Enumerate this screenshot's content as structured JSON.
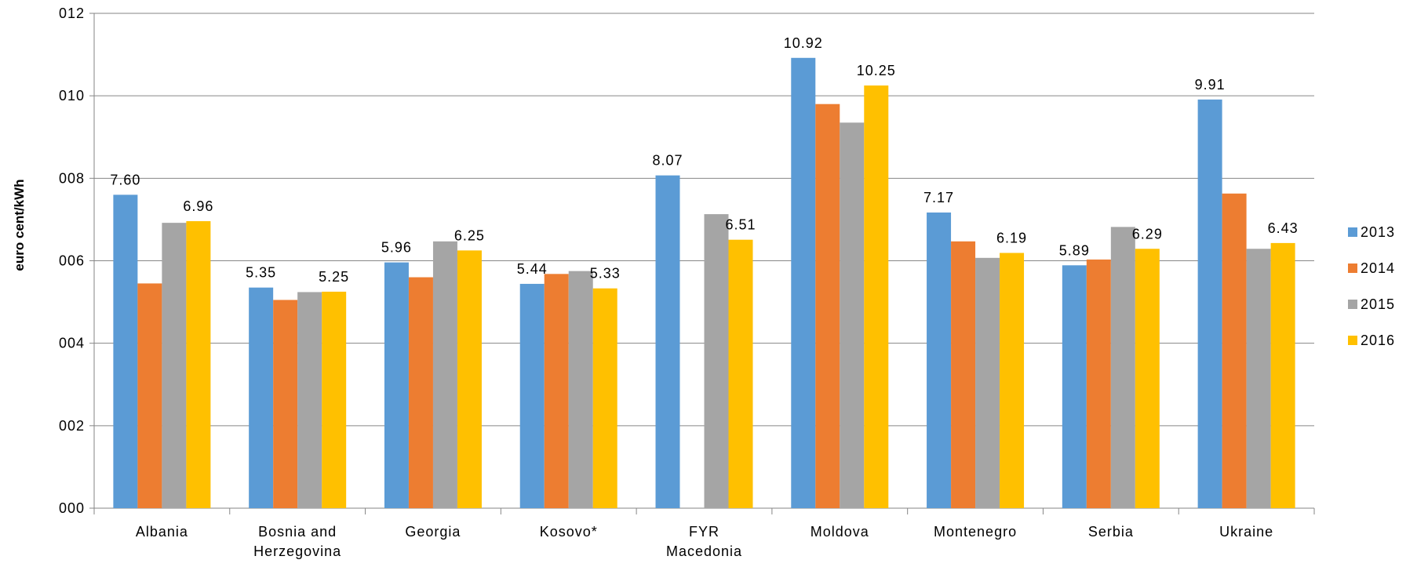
{
  "chart_data": {
    "type": "bar",
    "title": "",
    "xlabel": "",
    "ylabel": "euro cent/kWh",
    "ylim": [
      0,
      12
    ],
    "yticks": [
      0,
      2,
      4,
      6,
      8,
      10,
      12
    ],
    "ytick_labels": [
      "000",
      "002",
      "004",
      "006",
      "008",
      "010",
      "012"
    ],
    "grid": true,
    "legend_position": "right",
    "categories": [
      "Albania",
      "Bosnia and Herzegovina",
      "Georgia",
      "Kosovo*",
      "FYR Macedonia",
      "Moldova",
      "Montenegro",
      "Serbia",
      "Ukraine"
    ],
    "category_lines": [
      [
        "Albania"
      ],
      [
        "Bosnia and",
        "Herzegovina"
      ],
      [
        "Georgia"
      ],
      [
        "Kosovo*"
      ],
      [
        "FYR",
        "Macedonia"
      ],
      [
        "Moldova"
      ],
      [
        "Montenegro"
      ],
      [
        "Serbia"
      ],
      [
        "Ukraine"
      ]
    ],
    "series": [
      {
        "name": "2013",
        "color": "#5b9bd5",
        "values": [
          7.6,
          5.35,
          5.96,
          5.44,
          8.07,
          10.92,
          7.17,
          5.89,
          9.91
        ]
      },
      {
        "name": "2014",
        "color": "#ed7d31",
        "values": [
          5.45,
          5.05,
          5.6,
          5.68,
          null,
          9.8,
          6.47,
          6.03,
          7.63
        ]
      },
      {
        "name": "2015",
        "color": "#a5a5a5",
        "values": [
          6.92,
          5.24,
          6.47,
          5.75,
          7.13,
          9.35,
          6.07,
          6.82,
          6.29
        ]
      },
      {
        "name": "2016",
        "color": "#ffc000",
        "values": [
          6.96,
          5.25,
          6.25,
          5.33,
          6.51,
          10.25,
          6.19,
          6.29,
          6.43
        ]
      }
    ],
    "data_labels": [
      {
        "category": "Albania",
        "series": "2013",
        "text": "7.60"
      },
      {
        "category": "Albania",
        "series": "2016",
        "text": "6.96"
      },
      {
        "category": "Bosnia and Herzegovina",
        "series": "2013",
        "text": "5.35"
      },
      {
        "category": "Bosnia and Herzegovina",
        "series": "2016",
        "text": "5.25"
      },
      {
        "category": "Georgia",
        "series": "2013",
        "text": "5.96"
      },
      {
        "category": "Georgia",
        "series": "2016",
        "text": "6.25"
      },
      {
        "category": "Kosovo*",
        "series": "2013",
        "text": "5.44"
      },
      {
        "category": "Kosovo*",
        "series": "2016",
        "text": "5.33"
      },
      {
        "category": "FYR Macedonia",
        "series": "2013",
        "text": "8.07"
      },
      {
        "category": "FYR Macedonia",
        "series": "2016",
        "text": "6.51"
      },
      {
        "category": "Moldova",
        "series": "2013",
        "text": "10.92"
      },
      {
        "category": "Moldova",
        "series": "2016",
        "text": "10.25"
      },
      {
        "category": "Montenegro",
        "series": "2013",
        "text": "7.17"
      },
      {
        "category": "Montenegro",
        "series": "2016",
        "text": "6.19"
      },
      {
        "category": "Serbia",
        "series": "2013",
        "text": "5.89"
      },
      {
        "category": "Serbia",
        "series": "2016",
        "text": "6.29"
      },
      {
        "category": "Ukraine",
        "series": "2013",
        "text": "9.91"
      },
      {
        "category": "Ukraine",
        "series": "2016",
        "text": "6.43"
      }
    ]
  }
}
